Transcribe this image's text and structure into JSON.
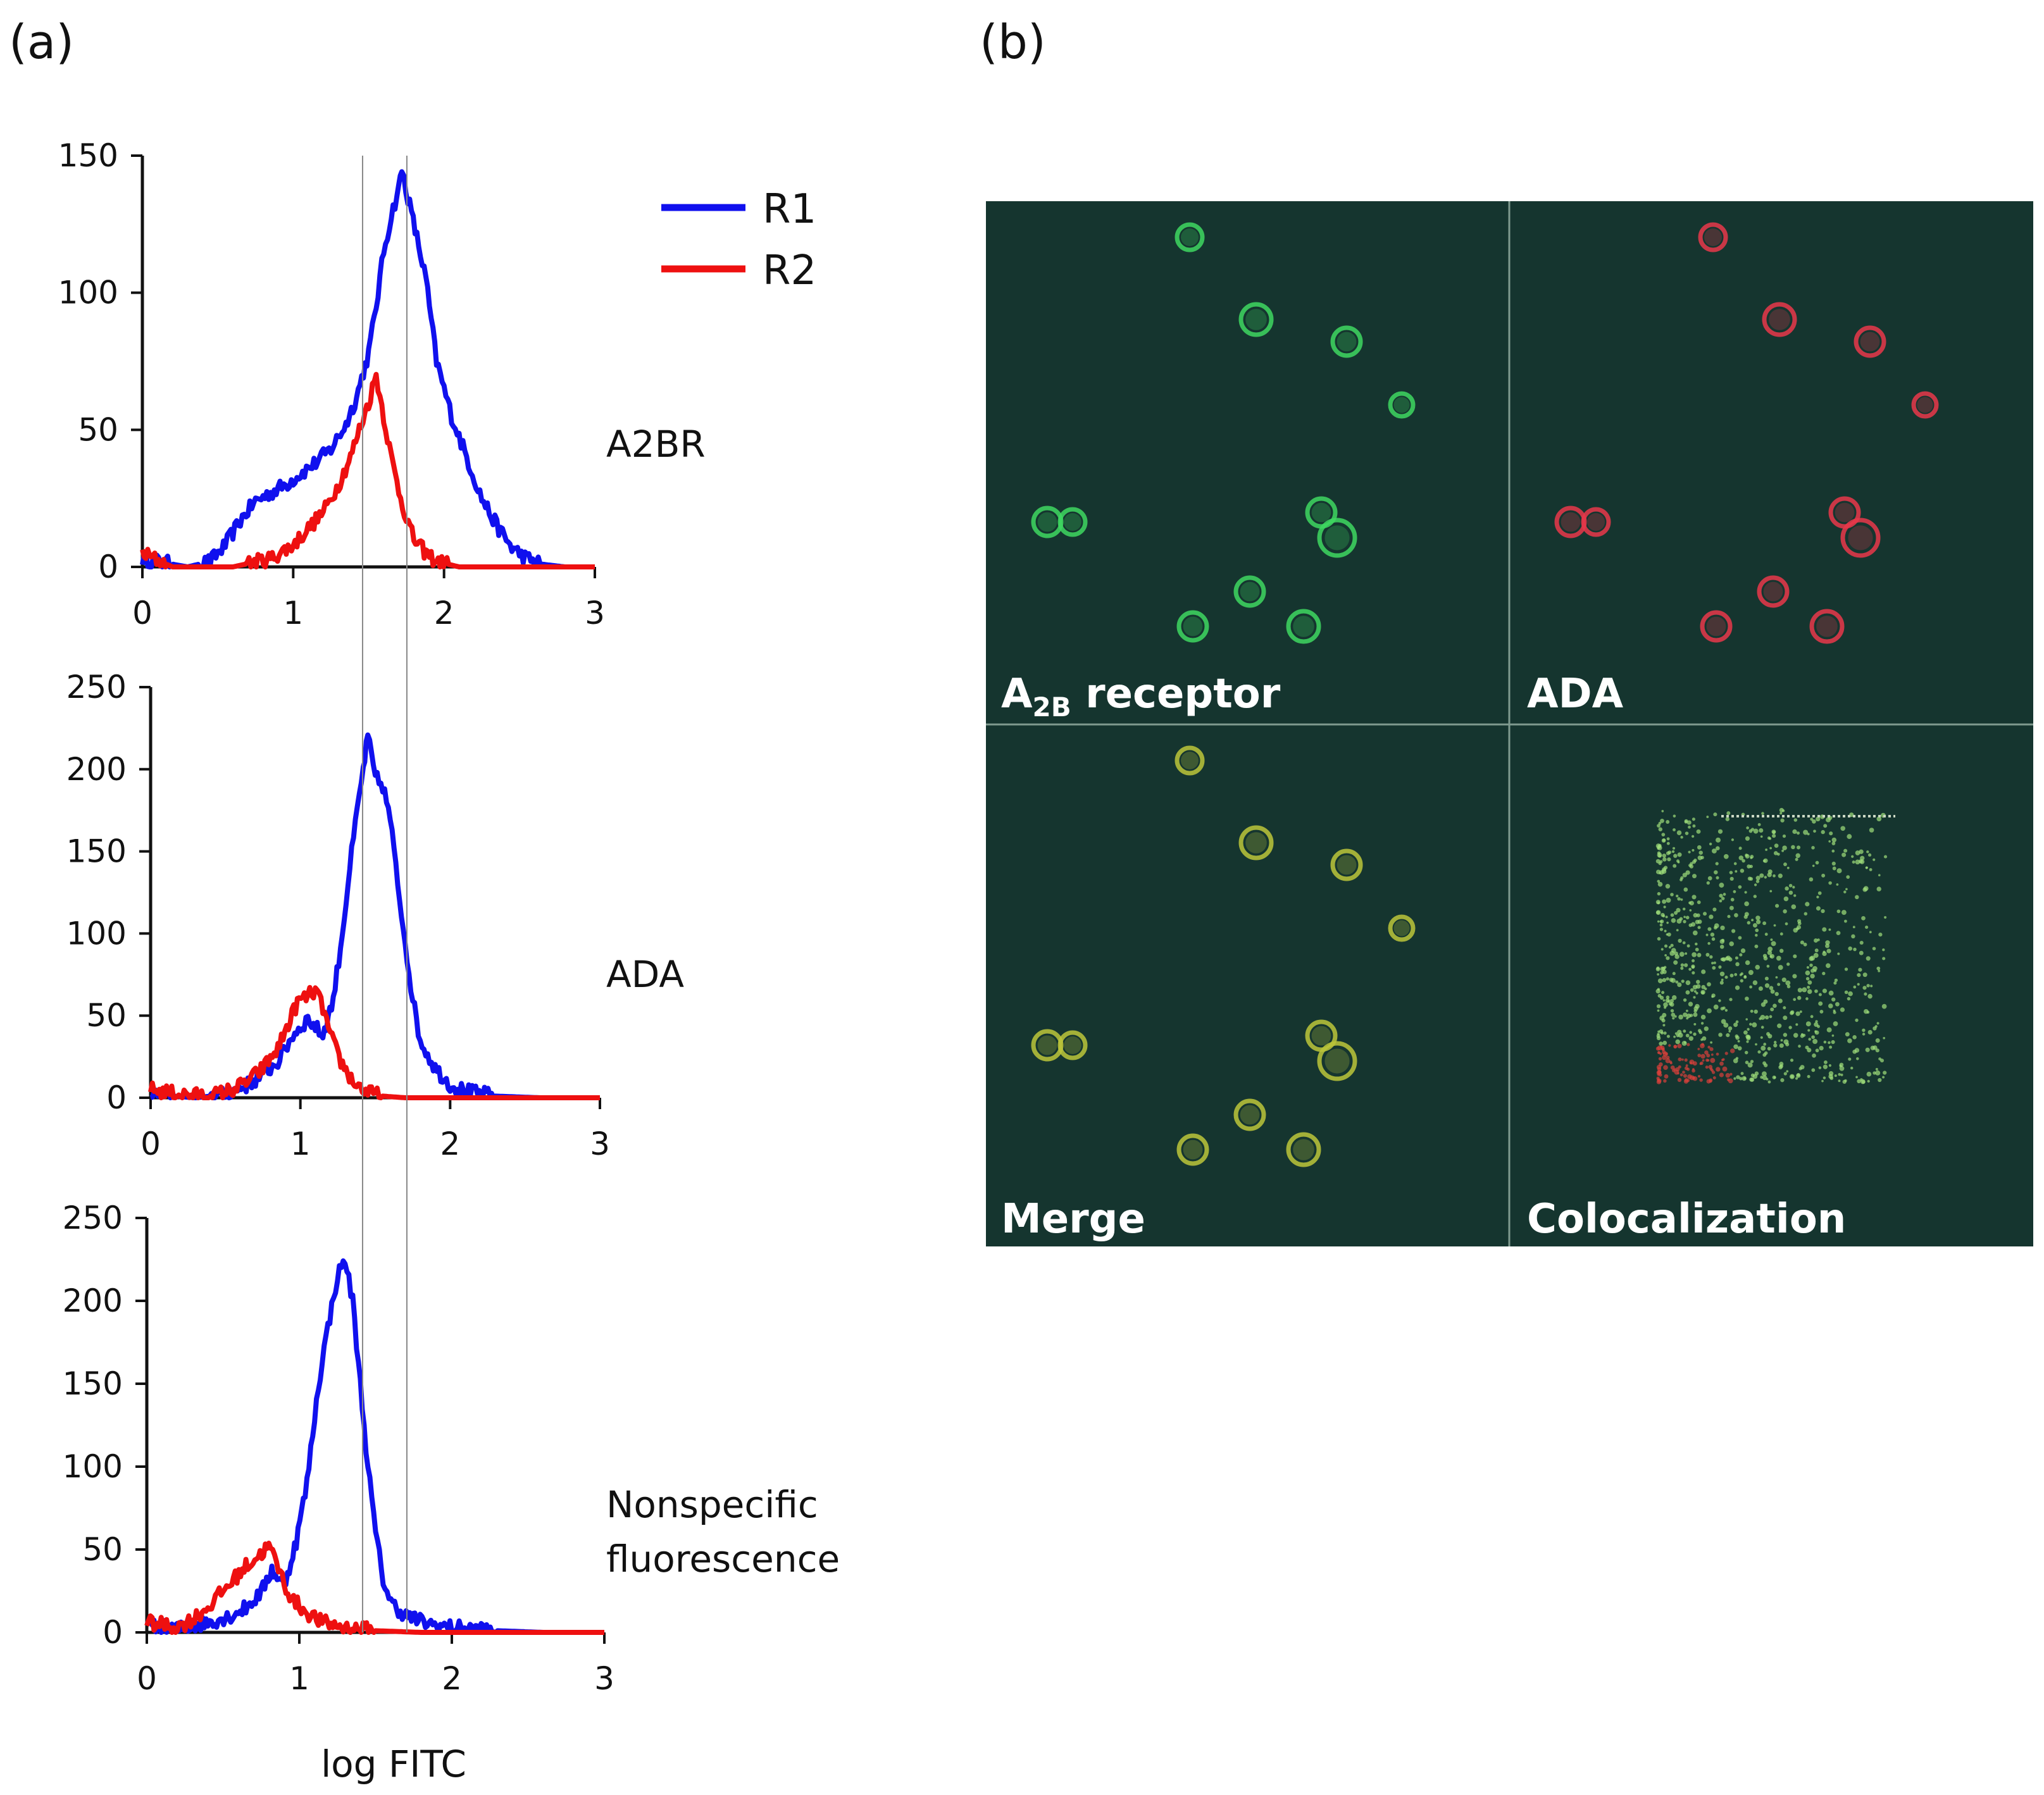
{
  "panels": {
    "a_label": "(a)",
    "b_label": "(b)"
  },
  "legend": [
    {
      "name": "R1",
      "color": "#1010ee"
    },
    {
      "name": "R2",
      "color": "#ee1010"
    }
  ],
  "x_axis_label": "log FITC",
  "reference_lines_x": [
    1.46,
    1.72
  ],
  "chart_data": [
    {
      "type": "line",
      "id": "a2br",
      "row_label_lines": [
        "A2BR"
      ],
      "xlim": [
        0,
        3
      ],
      "ylim": [
        0,
        150
      ],
      "xticks": [
        0,
        1,
        2,
        3
      ],
      "yticks": [
        0,
        50,
        100,
        150
      ],
      "series": [
        {
          "name": "R1",
          "color": "#1010ee",
          "points": [
            [
              0,
              3
            ],
            [
              0.3,
              0
            ],
            [
              0.45,
              2
            ],
            [
              0.55,
              8
            ],
            [
              0.65,
              17
            ],
            [
              0.75,
              24
            ],
            [
              0.85,
              27
            ],
            [
              0.95,
              30
            ],
            [
              1.05,
              34
            ],
            [
              1.15,
              38
            ],
            [
              1.25,
              43
            ],
            [
              1.35,
              52
            ],
            [
              1.42,
              62
            ],
            [
              1.5,
              78
            ],
            [
              1.55,
              95
            ],
            [
              1.6,
              115
            ],
            [
              1.65,
              128
            ],
            [
              1.7,
              138
            ],
            [
              1.72,
              145
            ],
            [
              1.76,
              135
            ],
            [
              1.82,
              120
            ],
            [
              1.88,
              105
            ],
            [
              1.95,
              75
            ],
            [
              2.05,
              55
            ],
            [
              2.15,
              40
            ],
            [
              2.25,
              25
            ],
            [
              2.35,
              15
            ],
            [
              2.45,
              7
            ],
            [
              2.55,
              3
            ],
            [
              2.65,
              1
            ],
            [
              2.8,
              0
            ],
            [
              3,
              0
            ]
          ]
        },
        {
          "name": "R2",
          "color": "#ee1010",
          "points": [
            [
              0,
              5
            ],
            [
              0.2,
              0
            ],
            [
              0.6,
              0
            ],
            [
              0.85,
              3
            ],
            [
              1.0,
              8
            ],
            [
              1.1,
              14
            ],
            [
              1.2,
              20
            ],
            [
              1.3,
              30
            ],
            [
              1.38,
              40
            ],
            [
              1.45,
              52
            ],
            [
              1.5,
              60
            ],
            [
              1.55,
              70
            ],
            [
              1.6,
              55
            ],
            [
              1.65,
              40
            ],
            [
              1.7,
              28
            ],
            [
              1.75,
              18
            ],
            [
              1.8,
              10
            ],
            [
              1.88,
              5
            ],
            [
              1.95,
              2
            ],
            [
              2.1,
              0
            ],
            [
              2.4,
              0
            ],
            [
              3,
              0
            ]
          ]
        }
      ]
    },
    {
      "type": "line",
      "id": "ada",
      "row_label_lines": [
        "ADA"
      ],
      "xlim": [
        0,
        3
      ],
      "ylim": [
        0,
        250
      ],
      "xticks": [
        0,
        1,
        2,
        3
      ],
      "yticks": [
        0,
        50,
        100,
        150,
        200,
        250
      ],
      "series": [
        {
          "name": "R1",
          "color": "#1010ee",
          "points": [
            [
              0,
              2
            ],
            [
              0.3,
              0
            ],
            [
              0.5,
              2
            ],
            [
              0.65,
              8
            ],
            [
              0.75,
              14
            ],
            [
              0.85,
              22
            ],
            [
              0.95,
              38
            ],
            [
              1.05,
              48
            ],
            [
              1.15,
              38
            ],
            [
              1.22,
              60
            ],
            [
              1.28,
              100
            ],
            [
              1.33,
              140
            ],
            [
              1.38,
              175
            ],
            [
              1.42,
              200
            ],
            [
              1.45,
              220
            ],
            [
              1.5,
              195
            ],
            [
              1.55,
              190
            ],
            [
              1.6,
              170
            ],
            [
              1.65,
              130
            ],
            [
              1.7,
              95
            ],
            [
              1.75,
              60
            ],
            [
              1.8,
              35
            ],
            [
              1.9,
              18
            ],
            [
              2.0,
              8
            ],
            [
              2.1,
              4
            ],
            [
              2.3,
              1
            ],
            [
              2.6,
              0
            ],
            [
              3,
              0
            ]
          ]
        },
        {
          "name": "R2",
          "color": "#ee1010",
          "points": [
            [
              0,
              5
            ],
            [
              0.2,
              2
            ],
            [
              0.4,
              1
            ],
            [
              0.55,
              5
            ],
            [
              0.65,
              10
            ],
            [
              0.75,
              18
            ],
            [
              0.85,
              30
            ],
            [
              0.92,
              45
            ],
            [
              0.98,
              58
            ],
            [
              1.05,
              62
            ],
            [
              1.1,
              65
            ],
            [
              1.15,
              55
            ],
            [
              1.2,
              38
            ],
            [
              1.27,
              22
            ],
            [
              1.35,
              10
            ],
            [
              1.45,
              3
            ],
            [
              1.55,
              1
            ],
            [
              1.7,
              0
            ],
            [
              3,
              0
            ]
          ]
        }
      ]
    },
    {
      "type": "line",
      "id": "nonspecific",
      "row_label_lines": [
        "Nonspecific",
        "fluorescence"
      ],
      "xlim": [
        0,
        3
      ],
      "ylim": [
        0,
        250
      ],
      "xticks": [
        0,
        1,
        2,
        3
      ],
      "yticks": [
        0,
        50,
        100,
        150,
        200,
        250
      ],
      "series": [
        {
          "name": "R1",
          "color": "#1010ee",
          "points": [
            [
              0,
              4
            ],
            [
              0.2,
              2
            ],
            [
              0.4,
              6
            ],
            [
              0.55,
              10
            ],
            [
              0.65,
              15
            ],
            [
              0.75,
              24
            ],
            [
              0.82,
              38
            ],
            [
              0.9,
              28
            ],
            [
              0.98,
              55
            ],
            [
              1.05,
              90
            ],
            [
              1.1,
              130
            ],
            [
              1.15,
              165
            ],
            [
              1.2,
              190
            ],
            [
              1.25,
              215
            ],
            [
              1.3,
              225
            ],
            [
              1.35,
              200
            ],
            [
              1.4,
              150
            ],
            [
              1.45,
              100
            ],
            [
              1.5,
              60
            ],
            [
              1.55,
              32
            ],
            [
              1.6,
              18
            ],
            [
              1.7,
              10
            ],
            [
              1.85,
              5
            ],
            [
              2.0,
              3
            ],
            [
              2.3,
              1
            ],
            [
              2.6,
              0
            ],
            [
              3,
              0
            ]
          ]
        },
        {
          "name": "R2",
          "color": "#ee1010",
          "points": [
            [
              0,
              6
            ],
            [
              0.2,
              3
            ],
            [
              0.3,
              8
            ],
            [
              0.4,
              15
            ],
            [
              0.5,
              25
            ],
            [
              0.58,
              33
            ],
            [
              0.65,
              40
            ],
            [
              0.72,
              45
            ],
            [
              0.8,
              52
            ],
            [
              0.85,
              42
            ],
            [
              0.9,
              30
            ],
            [
              0.95,
              20
            ],
            [
              1.05,
              12
            ],
            [
              1.15,
              6
            ],
            [
              1.3,
              3
            ],
            [
              1.5,
              1
            ],
            [
              1.8,
              0
            ],
            [
              3,
              0
            ]
          ]
        }
      ]
    }
  ],
  "microscopy": {
    "quadrants": [
      {
        "id": "a2b",
        "label_main": "A",
        "label_sub": "2B",
        "label_rest": " receptor"
      },
      {
        "id": "ada",
        "label_main": "ADA",
        "label_sub": "",
        "label_rest": ""
      },
      {
        "id": "merge",
        "label_main": "Merge",
        "label_sub": "",
        "label_rest": ""
      },
      {
        "id": "coloc",
        "label_main": "Colocalization",
        "label_sub": "",
        "label_rest": ""
      }
    ],
    "channel_colors": {
      "background": "#15352f",
      "a2b": "#3ed760",
      "ada": "#e9374a",
      "merge": "#bcc63a",
      "coloc_high": "#9fe07a",
      "coloc_low": "#d8403b"
    }
  }
}
